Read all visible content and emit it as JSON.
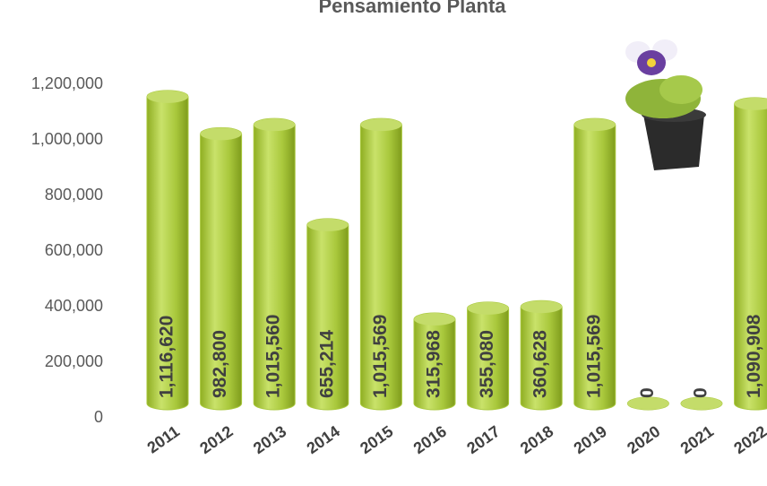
{
  "chart_data": {
    "type": "bar",
    "title": "Pensamiento Planta",
    "categories": [
      "2011",
      "2012",
      "2013",
      "2014",
      "2015",
      "2016",
      "2017",
      "2018",
      "2019",
      "2020",
      "2021",
      "2022"
    ],
    "values": [
      1116620,
      982800,
      1015560,
      655214,
      1015569,
      315968,
      355080,
      360628,
      1015569,
      0,
      0,
      1090908
    ],
    "value_labels": [
      "1,116,620",
      "982,800",
      "1,015,560",
      "655,214",
      "1,015,569",
      "315,968",
      "355,080",
      "360,628",
      "1,015,569",
      "0",
      "0",
      "1,090,908"
    ],
    "color": "#a9c83c",
    "ylim": [
      0,
      1200000
    ],
    "yticks": [
      0,
      {
        "value": 200000,
        "label": "200,000"
      },
      {
        "value": 400000,
        "label": "400,000"
      },
      {
        "value": 600000,
        "label": "600,000"
      },
      {
        "value": 800000,
        "label": "800,000"
      },
      {
        "value": 1000000,
        "label": "1,000,000"
      },
      {
        "value": 1200000,
        "label": "1,200,000"
      }
    ],
    "grid": false
  }
}
